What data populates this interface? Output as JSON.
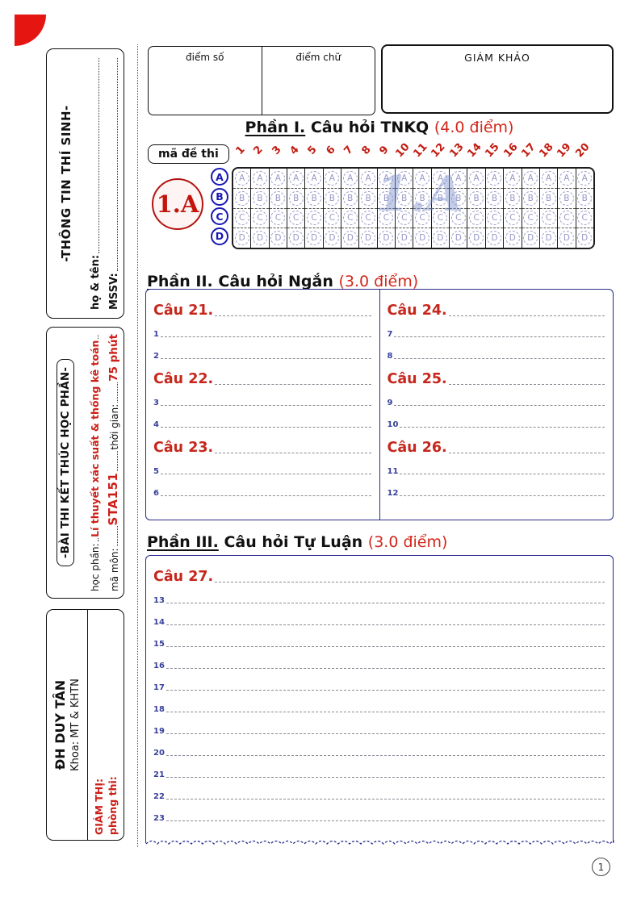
{
  "header": {
    "score_number_label": "điểm số",
    "score_word_label": "điểm chữ",
    "examiner_label": "GIÁM KHẢO"
  },
  "sidebar": {
    "student_info": {
      "title": "-THÔNG TIN THÍ SINH-",
      "name_label": "họ & tên:",
      "id_label": "MSSV:"
    },
    "exam_info": {
      "title": "-BÀI THI KẾT THÚC HỌC PHẦN-",
      "course_label": "học phần:",
      "course_value": "Lí thuyết xác suất & thống kê toán",
      "code_label": "mã môn:",
      "code_value": "STA151",
      "time_label": "thời gian:",
      "time_value": "75 phút"
    },
    "school_info": {
      "university": "ĐH DUY TÂN",
      "faculty": "Khoa: MT & KHTN",
      "proctor_label": "GIÁM THỊ:",
      "room_label": "phòng thi:"
    }
  },
  "part1": {
    "title_prefix": "Phần I.",
    "title": "Câu hỏi TNKQ",
    "points": "(4.0 điểm)",
    "exam_code_label": "mã đề thi",
    "exam_code": "1.A",
    "watermark": "1.A",
    "question_numbers": [
      "1",
      "2",
      "3",
      "4",
      "5",
      "6",
      "7",
      "8",
      "9",
      "10",
      "11",
      "12",
      "13",
      "14",
      "15",
      "16",
      "17",
      "18",
      "19",
      "20"
    ],
    "options": [
      "A",
      "B",
      "C",
      "D"
    ]
  },
  "part2": {
    "title_prefix": "Phần II.",
    "title": "Câu hỏi Ngắn",
    "points": "(3.0 điểm)",
    "left_questions": [
      {
        "label": "Câu 21.",
        "lines": [
          "1",
          "2"
        ]
      },
      {
        "label": "Câu 22.",
        "lines": [
          "3",
          "4"
        ]
      },
      {
        "label": "Câu 23.",
        "lines": [
          "5",
          "6"
        ]
      }
    ],
    "right_questions": [
      {
        "label": "Câu 24.",
        "lines": [
          "7",
          "8"
        ]
      },
      {
        "label": "Câu 25.",
        "lines": [
          "9",
          "10"
        ]
      },
      {
        "label": "Câu 26.",
        "lines": [
          "11",
          "12"
        ]
      }
    ]
  },
  "part3": {
    "title_prefix": "Phần III.",
    "title": "Câu hỏi Tự Luận",
    "points": "(3.0 điểm)",
    "question": {
      "label": "Câu 27.",
      "lines": [
        "13",
        "14",
        "15",
        "16",
        "17",
        "18",
        "19",
        "20",
        "21",
        "22",
        "23"
      ]
    }
  },
  "page": {
    "number": "1"
  },
  "colors": {
    "accent_red": "#cb2018",
    "bubble_red_border": "#b31310",
    "navy_border": "#2b2b8e",
    "line_number_navy": "#39409b",
    "bubble_letter_periwinkle": "#9898c8",
    "watermark_blue": "#7d91cd",
    "corner_red": "#e51512"
  }
}
